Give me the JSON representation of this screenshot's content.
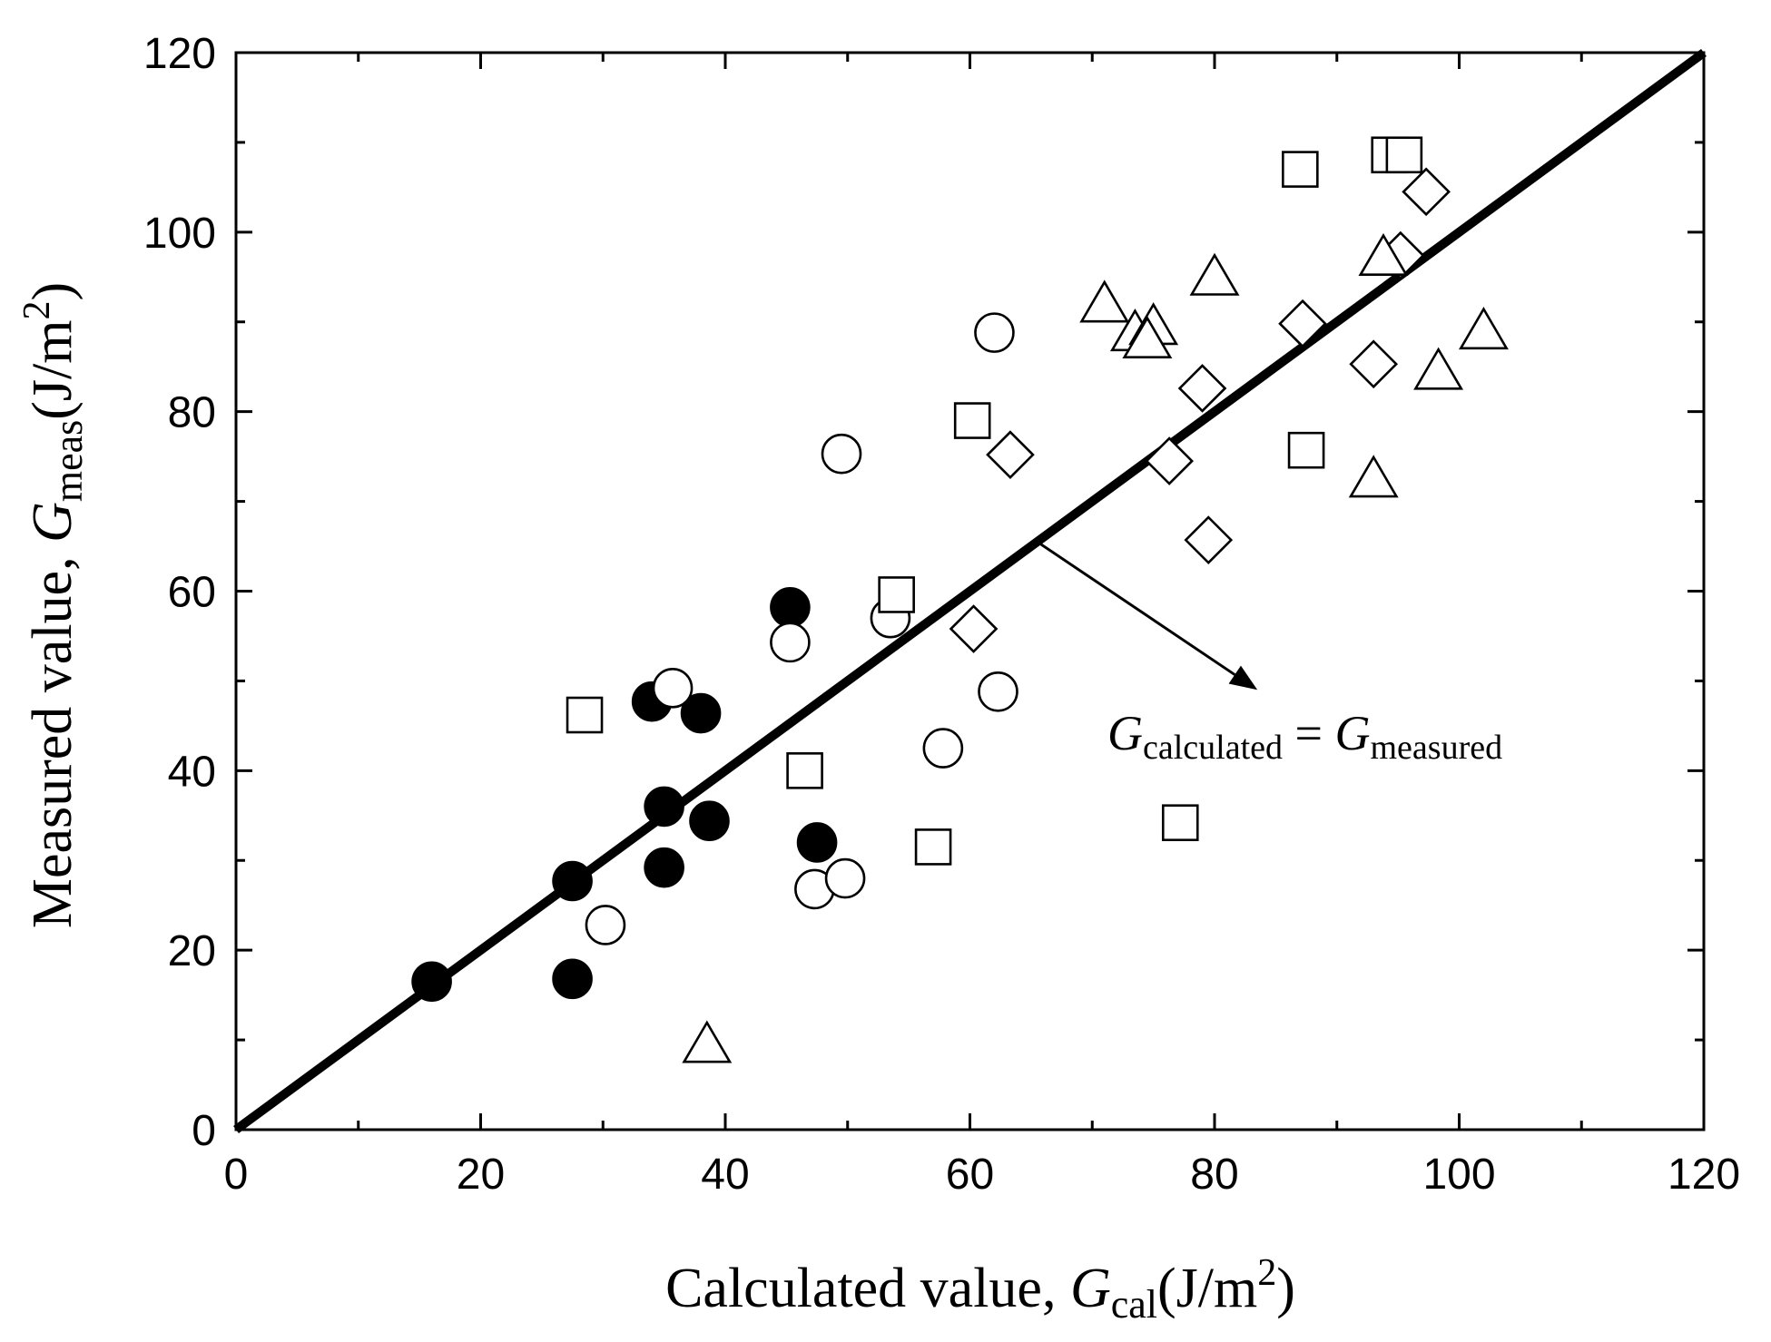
{
  "chart_data": {
    "type": "scatter",
    "title": "",
    "xlim": [
      0,
      120
    ],
    "ylim": [
      0,
      120
    ],
    "x_major_step": 20,
    "y_major_step": 20,
    "x_minor_step": 10,
    "y_minor_step": 10,
    "xlabel": {
      "prefix": "Calculated value, ",
      "symbol": "G",
      "subscript": "cal",
      "unit_open": "(J/m",
      "unit_sup": "2",
      "unit_close": ")"
    },
    "ylabel": {
      "prefix": "Measured value, ",
      "symbol": "G",
      "subscript": "meas",
      "unit_open": "(J/m",
      "unit_sup": "2",
      "unit_close": ")"
    },
    "reference_line": {
      "x": [
        0,
        120
      ],
      "y": [
        0,
        120
      ]
    },
    "annotation": {
      "symbol_left": "G",
      "sub_left": "calculated",
      "equals": " = ",
      "symbol_right": "G",
      "sub_right": "measured",
      "arrow_from": [
        65.5,
        65.5
      ],
      "arrow_to": [
        83.5,
        49
      ]
    },
    "series": [
      {
        "name": "filled-circle",
        "marker": "filled-circle",
        "points": [
          [
            16,
            16.5
          ],
          [
            27.5,
            27.7
          ],
          [
            27.5,
            16.8
          ],
          [
            34,
            47.7
          ],
          [
            35,
            36
          ],
          [
            35,
            29.2
          ],
          [
            38,
            46.4
          ],
          [
            38.7,
            34.4
          ],
          [
            45.3,
            58.2
          ],
          [
            47.5,
            32
          ]
        ]
      },
      {
        "name": "open-circle",
        "marker": "open-circle",
        "points": [
          [
            30.2,
            22.8
          ],
          [
            35.7,
            49.2
          ],
          [
            45.3,
            54.3
          ],
          [
            47.3,
            26.8
          ],
          [
            49.5,
            75.3
          ],
          [
            49.8,
            28
          ],
          [
            53.5,
            57
          ],
          [
            57.8,
            42.5
          ],
          [
            62,
            88.8
          ],
          [
            62.3,
            48.8
          ]
        ]
      },
      {
        "name": "open-square",
        "marker": "open-square",
        "points": [
          [
            28.5,
            46.2
          ],
          [
            46.5,
            40
          ],
          [
            54,
            59.6
          ],
          [
            57,
            31.5
          ],
          [
            60.2,
            79
          ],
          [
            77.2,
            34.2
          ],
          [
            87,
            107
          ],
          [
            87.5,
            75.7
          ],
          [
            94.3,
            108.6
          ],
          [
            95.5,
            108.6
          ]
        ]
      },
      {
        "name": "open-diamond",
        "marker": "open-diamond",
        "points": [
          [
            60.3,
            55.8
          ],
          [
            63.3,
            75.2
          ],
          [
            76.3,
            74.5
          ],
          [
            79,
            82.6
          ],
          [
            79.5,
            65.7
          ],
          [
            87.2,
            89.8
          ],
          [
            93,
            85.3
          ],
          [
            95.2,
            97.4
          ],
          [
            97.3,
            104.5
          ]
        ]
      },
      {
        "name": "open-triangle",
        "marker": "open-triangle",
        "points": [
          [
            38.5,
            9.5
          ],
          [
            71,
            92
          ],
          [
            73.5,
            88.8
          ],
          [
            75,
            89.5
          ],
          [
            74.5,
            88
          ],
          [
            80,
            95
          ],
          [
            93,
            72.5
          ],
          [
            93.8,
            97.2
          ],
          [
            98.3,
            84.5
          ],
          [
            102,
            89
          ]
        ]
      }
    ]
  }
}
